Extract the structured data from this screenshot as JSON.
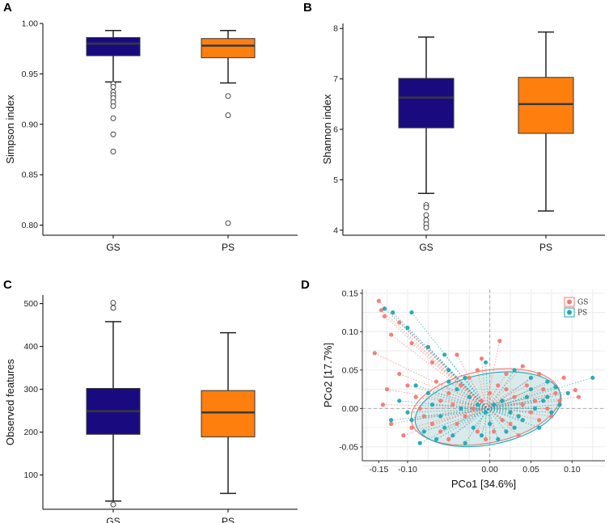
{
  "chart_data": [
    {
      "panel": "A",
      "type": "box",
      "ylabel": "Simpson index",
      "ylim": [
        0.79,
        1.0
      ],
      "yticks": [
        0.8,
        0.85,
        0.9,
        0.95,
        1.0
      ],
      "ytick_labels": [
        "0.80",
        "0.85",
        "0.90",
        "0.95",
        "1.00"
      ],
      "categories": [
        "GS",
        "PS"
      ],
      "colors": [
        "#1a0a80",
        "#ff7f0e"
      ],
      "boxes": [
        {
          "q1": 0.968,
          "median": 0.98,
          "q3": 0.986,
          "whisker_low": 0.942,
          "whisker_high": 0.993,
          "outliers": [
            0.94,
            0.937,
            0.932,
            0.929,
            0.926,
            0.922,
            0.918,
            0.906,
            0.89,
            0.873
          ]
        },
        {
          "q1": 0.966,
          "median": 0.978,
          "q3": 0.985,
          "whisker_low": 0.941,
          "whisker_high": 0.993,
          "outliers": [
            0.928,
            0.909,
            0.802
          ]
        }
      ]
    },
    {
      "panel": "B",
      "type": "box",
      "ylabel": "Shannon index",
      "ylim": [
        3.9,
        8.1
      ],
      "yticks": [
        4,
        5,
        6,
        7,
        8
      ],
      "ytick_labels": [
        "4",
        "5",
        "6",
        "7",
        "8"
      ],
      "categories": [
        "GS",
        "PS"
      ],
      "colors": [
        "#1a0a80",
        "#ff7f0e"
      ],
      "boxes": [
        {
          "q1": 6.03,
          "median": 6.63,
          "q3": 7.01,
          "whisker_low": 4.73,
          "whisker_high": 7.83,
          "outliers": [
            4.5,
            4.45,
            4.3,
            4.2,
            4.12,
            4.05
          ]
        },
        {
          "q1": 5.92,
          "median": 6.5,
          "q3": 7.03,
          "whisker_low": 4.38,
          "whisker_high": 7.93,
          "outliers": []
        }
      ]
    },
    {
      "panel": "C",
      "type": "box",
      "ylabel": "Observed features",
      "ylim": [
        20,
        520
      ],
      "yticks": [
        100,
        200,
        300,
        400,
        500
      ],
      "ytick_labels": [
        "100",
        "200",
        "300",
        "400",
        "500"
      ],
      "categories": [
        "GS",
        "PS"
      ],
      "colors": [
        "#1a0a80",
        "#ff7f0e"
      ],
      "boxes": [
        {
          "q1": 195,
          "median": 249,
          "q3": 302,
          "whisker_low": 39,
          "whisker_high": 458,
          "outliers": [
            502,
            490,
            31
          ]
        },
        {
          "q1": 189,
          "median": 246,
          "q3": 297,
          "whisker_low": 57,
          "whisker_high": 432,
          "outliers": []
        }
      ]
    },
    {
      "panel": "D",
      "type": "scatter",
      "xlabel": "PCo1 [34.6%]",
      "ylabel": "PCo2 [17.7%]",
      "xlim": [
        -0.155,
        0.14
      ],
      "ylim": [
        -0.068,
        0.155
      ],
      "xticks": [
        -0.1,
        0.0,
        0.05,
        0.1
      ],
      "xtick_labels": [
        "-0.10",
        "0.00",
        "0.05",
        "0.10"
      ],
      "xtick_extra": {
        "value": -0.135,
        "label": "-0.15"
      },
      "yticks": [
        -0.05,
        0.0,
        0.05,
        0.1,
        0.15
      ],
      "ytick_labels": [
        "-0.05",
        "0.00",
        "0.05",
        "0.10",
        "0.15"
      ],
      "legend": [
        {
          "name": "GS",
          "color": "#f07b73"
        },
        {
          "name": "PS",
          "color": "#1fa9b5"
        }
      ],
      "legend_position": "top-right",
      "series": [
        {
          "name": "GS",
          "color": "#f07b73",
          "centroid": [
            -0.005,
            0.002
          ],
          "ellipse": {
            "rx": 0.092,
            "ry": 0.047,
            "angle_deg": 11
          },
          "points": [
            [
              -0.135,
              0.14
            ],
            [
              -0.132,
              0.128
            ],
            [
              -0.128,
              0.12
            ],
            [
              -0.11,
              0.112
            ],
            [
              -0.14,
              0.072
            ],
            [
              -0.12,
              0.096
            ],
            [
              -0.095,
              0.085
            ],
            [
              -0.07,
              0.06
            ],
            [
              -0.075,
              0.08
            ],
            [
              -0.04,
              0.07
            ],
            [
              -0.01,
              0.065
            ],
            [
              0.012,
              0.088
            ],
            [
              0.04,
              0.055
            ],
            [
              0.06,
              0.045
            ],
            [
              0.09,
              0.04
            ],
            [
              0.104,
              0.024
            ],
            [
              0.108,
              0.015
            ],
            [
              0.085,
              0.01
            ],
            [
              -0.11,
              0.045
            ],
            [
              -0.1,
              0.03
            ],
            [
              -0.09,
              0.015
            ],
            [
              -0.085,
              0.0
            ],
            [
              -0.08,
              -0.01
            ],
            [
              -0.07,
              -0.02
            ],
            [
              -0.06,
              -0.03
            ],
            [
              -0.05,
              -0.04
            ],
            [
              -0.04,
              -0.02
            ],
            [
              -0.03,
              -0.01
            ],
            [
              -0.02,
              0.0
            ],
            [
              -0.01,
              0.01
            ],
            [
              0.0,
              0.02
            ],
            [
              0.01,
              0.03
            ],
            [
              0.02,
              0.025
            ],
            [
              0.03,
              0.015
            ],
            [
              0.04,
              0.005
            ],
            [
              0.05,
              -0.005
            ],
            [
              0.06,
              -0.015
            ],
            [
              0.07,
              0.0
            ],
            [
              0.08,
              0.02
            ],
            [
              -0.06,
              0.01
            ],
            [
              -0.05,
              0.02
            ],
            [
              -0.035,
              0.03
            ],
            [
              -0.025,
              0.04
            ],
            [
              -0.015,
              -0.03
            ],
            [
              -0.005,
              -0.04
            ],
            [
              0.005,
              -0.03
            ],
            [
              0.015,
              -0.015
            ],
            [
              0.025,
              -0.02
            ],
            [
              0.035,
              -0.035
            ],
            [
              -0.12,
              -0.02
            ],
            [
              -0.105,
              -0.035
            ],
            [
              -0.095,
              -0.025
            ],
            [
              -0.065,
              0.035
            ],
            [
              -0.045,
              0.005
            ],
            [
              0.045,
              0.03
            ],
            [
              0.055,
              0.01
            ],
            [
              0.065,
              0.025
            ],
            [
              0.075,
              -0.01
            ],
            [
              -0.13,
              0.005
            ],
            [
              -0.125,
              0.025
            ],
            [
              -0.015,
              0.05
            ],
            [
              0.02,
              0.045
            ]
          ]
        },
        {
          "name": "PS",
          "color": "#1fa9b5",
          "centroid": [
            -0.002,
            -0.001
          ],
          "ellipse": {
            "rx": 0.09,
            "ry": 0.046,
            "angle_deg": 11
          },
          "points": [
            [
              -0.128,
              0.13
            ],
            [
              -0.118,
              0.125
            ],
            [
              -0.1,
              0.105
            ],
            [
              -0.095,
              0.125
            ],
            [
              -0.075,
              0.08
            ],
            [
              -0.055,
              0.07
            ],
            [
              -0.05,
              0.05
            ],
            [
              -0.03,
              0.04
            ],
            [
              -0.005,
              0.06
            ],
            [
              0.03,
              0.05
            ],
            [
              0.05,
              0.04
            ],
            [
              0.07,
              0.035
            ],
            [
              0.125,
              0.04
            ],
            [
              0.095,
              0.02
            ],
            [
              0.08,
              0.028
            ],
            [
              -0.11,
              0.01
            ],
            [
              -0.1,
              -0.005
            ],
            [
              -0.095,
              -0.015
            ],
            [
              -0.08,
              -0.03
            ],
            [
              -0.07,
              0.005
            ],
            [
              -0.06,
              -0.01
            ],
            [
              -0.055,
              -0.025
            ],
            [
              -0.045,
              -0.035
            ],
            [
              -0.035,
              0.0
            ],
            [
              -0.025,
              0.015
            ],
            [
              -0.015,
              0.005
            ],
            [
              -0.005,
              -0.005
            ],
            [
              0.005,
              0.005
            ],
            [
              0.015,
              0.01
            ],
            [
              0.025,
              -0.005
            ],
            [
              0.035,
              -0.01
            ],
            [
              0.045,
              0.015
            ],
            [
              0.055,
              0.0
            ],
            [
              0.065,
              0.01
            ],
            [
              0.075,
              -0.005
            ],
            [
              0.085,
              0.005
            ],
            [
              -0.12,
              -0.015
            ],
            [
              -0.09,
              0.03
            ],
            [
              -0.075,
              0.02
            ],
            [
              -0.04,
              0.025
            ],
            [
              -0.02,
              -0.025
            ],
            [
              -0.01,
              -0.035
            ],
            [
              0.0,
              -0.02
            ],
            [
              0.01,
              -0.04
            ],
            [
              0.02,
              -0.03
            ],
            [
              0.03,
              -0.025
            ],
            [
              0.04,
              -0.015
            ],
            [
              0.06,
              -0.025
            ],
            [
              -0.085,
              -0.045
            ],
            [
              -0.065,
              -0.04
            ],
            [
              -0.03,
              -0.045
            ],
            [
              0.05,
              0.025
            ],
            [
              0.07,
              0.015
            ],
            [
              -0.05,
              0.035
            ]
          ]
        }
      ]
    }
  ]
}
